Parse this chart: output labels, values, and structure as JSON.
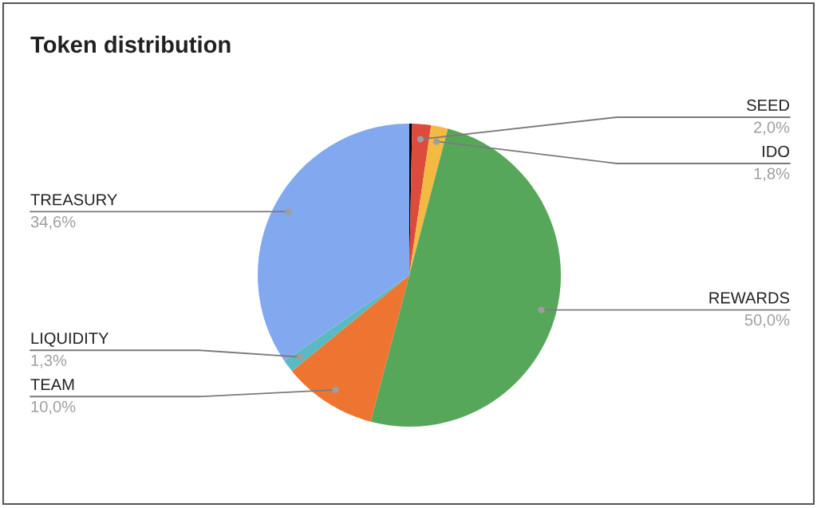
{
  "chart_data": {
    "type": "pie",
    "title": "Token distribution",
    "categories": [
      null,
      "SEED",
      "IDO",
      "REWARDS",
      "TEAM",
      "LIQUIDITY",
      "TREASURY"
    ],
    "values": [
      0.3,
      2.0,
      1.8,
      50.0,
      10.0,
      1.3,
      34.6
    ],
    "colors": [
      "#000000",
      "#dc4b3c",
      "#f4b942",
      "#57a75b",
      "#ed7531",
      "#5ab9c2",
      "#82a9ef"
    ],
    "value_labels": [
      null,
      "2,0%",
      "1,8%",
      "50,0%",
      "10,0%",
      "1,3%",
      "34,6%"
    ]
  }
}
